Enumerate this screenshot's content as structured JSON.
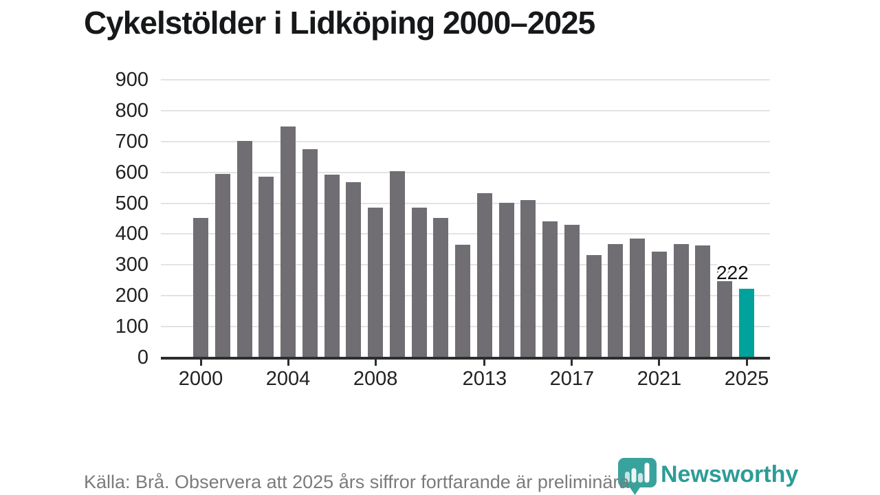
{
  "header": {
    "title": "Cykelstölder i Lidköping 2000–2025"
  },
  "chart_data": {
    "type": "bar",
    "title": "Cykelstölder i Lidköping 2000–2025",
    "xlabel": "",
    "ylabel": "",
    "x": [
      2000,
      2001,
      2002,
      2003,
      2004,
      2005,
      2006,
      2007,
      2008,
      2009,
      2010,
      2011,
      2012,
      2013,
      2014,
      2015,
      2016,
      2017,
      2018,
      2019,
      2020,
      2021,
      2022,
      2023,
      2024,
      2025
    ],
    "values": [
      453,
      595,
      702,
      585,
      748,
      675,
      593,
      567,
      485,
      604,
      485,
      452,
      366,
      533,
      502,
      511,
      441,
      429,
      331,
      367,
      386,
      343,
      367,
      364,
      298,
      222
    ],
    "highlight_year": 2025,
    "annotation": {
      "year": 2025,
      "text": "222"
    },
    "ylim": [
      0,
      900
    ],
    "y_ticks": [
      0,
      100,
      200,
      300,
      400,
      500,
      600,
      700,
      800,
      900
    ],
    "x_tick_years": [
      2000,
      2004,
      2008,
      2013,
      2017,
      2021,
      2025
    ],
    "grid": true,
    "legend": "none",
    "colors": {
      "bar": "#706d73",
      "highlight": "#00a29b",
      "grid": "#e3e3e3",
      "axis": "#2d2d2d",
      "tick_text": "#222222"
    }
  },
  "footer": {
    "source_note": "Källa: Brå. Observera att 2025 års siffror fortfarande är preliminära."
  },
  "logo": {
    "wordmark": "Newsworthy",
    "icon": "newsworthy-bubble-barchart-icon",
    "wordmark_color": "#2d9c96",
    "icon_color": "#38a39c"
  }
}
